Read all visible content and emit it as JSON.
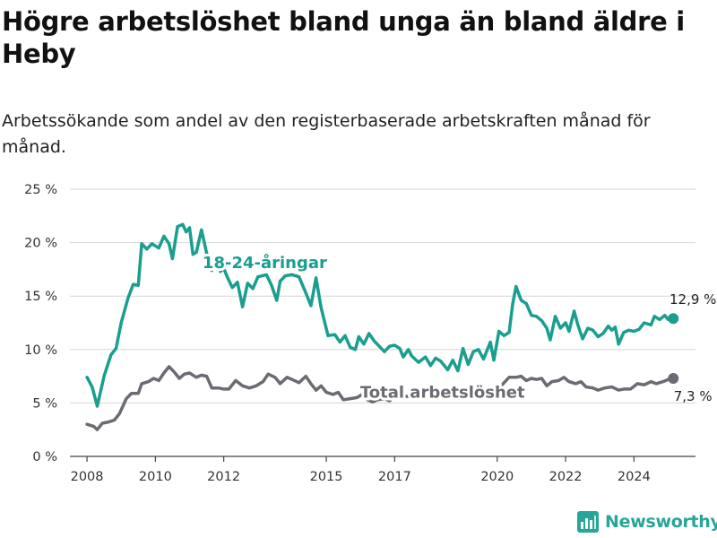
{
  "title": "Högre arbetslöshet bland unga än bland äldre i Heby",
  "subtitle": "Arbetssökande som andel av den registerbaserade arbetskraften månad för månad.",
  "brand": {
    "name": "Newsworthy",
    "icon": "newsworthy-logo-icon",
    "color": "#26a69a"
  },
  "chart_data": {
    "type": "line",
    "title": "Högre arbetslöshet bland unga än bland äldre i Heby",
    "subtitle": "Arbetssökande som andel av den registerbaserade arbetskraften månad för månad.",
    "xlabel": "",
    "ylabel": "",
    "x_range": [
      2007.5,
      2025.8
    ],
    "ylim": [
      0,
      25
    ],
    "y_ticks": [
      0,
      5,
      10,
      15,
      20,
      25
    ],
    "y_tick_labels": [
      "0 %",
      "5 %",
      "10 %",
      "15 %",
      "20 %",
      "25 %"
    ],
    "x_ticks": [
      2008,
      2010,
      2012,
      2015,
      2017,
      2020,
      2022,
      2024
    ],
    "x_tick_labels": [
      "2008",
      "2010",
      "2012",
      "2015",
      "2017",
      "2020",
      "2022",
      "2024"
    ],
    "grid": "horizontal",
    "series": [
      {
        "name": "18-24-åringar",
        "color": "#1a9e8f",
        "end_label": "12,9 %",
        "points": [
          [
            2008.0,
            7.4
          ],
          [
            2008.15,
            6.5
          ],
          [
            2008.3,
            4.7
          ],
          [
            2008.5,
            7.5
          ],
          [
            2008.7,
            9.5
          ],
          [
            2008.85,
            10.1
          ],
          [
            2009.0,
            12.5
          ],
          [
            2009.2,
            14.8
          ],
          [
            2009.35,
            16.1
          ],
          [
            2009.5,
            16.0
          ],
          [
            2009.6,
            19.9
          ],
          [
            2009.75,
            19.4
          ],
          [
            2009.9,
            19.9
          ],
          [
            2010.1,
            19.5
          ],
          [
            2010.25,
            20.6
          ],
          [
            2010.4,
            19.9
          ],
          [
            2010.5,
            18.5
          ],
          [
            2010.65,
            21.5
          ],
          [
            2010.8,
            21.7
          ],
          [
            2010.9,
            21.0
          ],
          [
            2011.0,
            21.4
          ],
          [
            2011.1,
            18.9
          ],
          [
            2011.2,
            19.1
          ],
          [
            2011.35,
            21.2
          ],
          [
            2011.5,
            19.0
          ],
          [
            2011.65,
            17.4
          ],
          [
            2011.8,
            18.2
          ],
          [
            2011.9,
            17.3
          ],
          [
            2012.0,
            17.6
          ],
          [
            2012.1,
            16.8
          ],
          [
            2012.25,
            15.8
          ],
          [
            2012.4,
            16.3
          ],
          [
            2012.55,
            14.0
          ],
          [
            2012.7,
            16.2
          ],
          [
            2012.85,
            15.7
          ],
          [
            2013.0,
            16.8
          ],
          [
            2013.25,
            17.0
          ],
          [
            2013.4,
            16.0
          ],
          [
            2013.55,
            14.6
          ],
          [
            2013.65,
            16.4
          ],
          [
            2013.8,
            16.9
          ],
          [
            2014.0,
            17.0
          ],
          [
            2014.2,
            16.8
          ],
          [
            2014.4,
            15.3
          ],
          [
            2014.55,
            14.1
          ],
          [
            2014.7,
            16.7
          ],
          [
            2014.85,
            13.9
          ],
          [
            2015.05,
            11.3
          ],
          [
            2015.25,
            11.4
          ],
          [
            2015.4,
            10.7
          ],
          [
            2015.55,
            11.3
          ],
          [
            2015.7,
            10.2
          ],
          [
            2015.85,
            10.0
          ],
          [
            2015.95,
            11.2
          ],
          [
            2016.1,
            10.5
          ],
          [
            2016.25,
            11.5
          ],
          [
            2016.4,
            10.8
          ],
          [
            2016.55,
            10.3
          ],
          [
            2016.7,
            9.8
          ],
          [
            2016.85,
            10.3
          ],
          [
            2017.0,
            10.4
          ],
          [
            2017.15,
            10.1
          ],
          [
            2017.25,
            9.3
          ],
          [
            2017.4,
            10.0
          ],
          [
            2017.5,
            9.4
          ],
          [
            2017.7,
            8.8
          ],
          [
            2017.9,
            9.3
          ],
          [
            2018.05,
            8.5
          ],
          [
            2018.2,
            9.2
          ],
          [
            2018.35,
            8.9
          ],
          [
            2018.55,
            8.1
          ],
          [
            2018.7,
            9.0
          ],
          [
            2018.85,
            8.0
          ],
          [
            2019.0,
            10.1
          ],
          [
            2019.15,
            8.6
          ],
          [
            2019.3,
            9.8
          ],
          [
            2019.45,
            10.0
          ],
          [
            2019.6,
            9.1
          ],
          [
            2019.8,
            10.7
          ],
          [
            2019.9,
            9.0
          ],
          [
            2020.05,
            11.7
          ],
          [
            2020.2,
            11.3
          ],
          [
            2020.35,
            11.6
          ],
          [
            2020.45,
            14.2
          ],
          [
            2020.55,
            15.9
          ],
          [
            2020.7,
            14.6
          ],
          [
            2020.85,
            14.3
          ],
          [
            2021.0,
            13.2
          ],
          [
            2021.15,
            13.1
          ],
          [
            2021.3,
            12.7
          ],
          [
            2021.45,
            12.0
          ],
          [
            2021.55,
            10.9
          ],
          [
            2021.7,
            13.1
          ],
          [
            2021.85,
            12.0
          ],
          [
            2022.0,
            12.5
          ],
          [
            2022.1,
            11.7
          ],
          [
            2022.25,
            13.6
          ],
          [
            2022.35,
            12.4
          ],
          [
            2022.5,
            11.0
          ],
          [
            2022.65,
            12.0
          ],
          [
            2022.8,
            11.8
          ],
          [
            2022.95,
            11.2
          ],
          [
            2023.1,
            11.5
          ],
          [
            2023.25,
            12.2
          ],
          [
            2023.35,
            11.8
          ],
          [
            2023.45,
            12.1
          ],
          [
            2023.55,
            10.5
          ],
          [
            2023.7,
            11.6
          ],
          [
            2023.85,
            11.8
          ],
          [
            2024.0,
            11.7
          ],
          [
            2024.15,
            11.9
          ],
          [
            2024.3,
            12.5
          ],
          [
            2024.5,
            12.3
          ],
          [
            2024.6,
            13.1
          ],
          [
            2024.75,
            12.8
          ],
          [
            2024.9,
            13.2
          ],
          [
            2025.0,
            12.8
          ],
          [
            2025.15,
            12.9
          ]
        ]
      },
      {
        "name": "Total arbetslöshet",
        "color": "#6b6b73",
        "end_label": "7,3 %",
        "points": [
          [
            2008.0,
            3.0
          ],
          [
            2008.2,
            2.8
          ],
          [
            2008.3,
            2.5
          ],
          [
            2008.45,
            3.1
          ],
          [
            2008.6,
            3.2
          ],
          [
            2008.8,
            3.4
          ],
          [
            2008.95,
            4.0
          ],
          [
            2009.15,
            5.4
          ],
          [
            2009.3,
            5.9
          ],
          [
            2009.5,
            5.9
          ],
          [
            2009.6,
            6.8
          ],
          [
            2009.8,
            7.0
          ],
          [
            2009.95,
            7.3
          ],
          [
            2010.1,
            7.1
          ],
          [
            2010.25,
            7.8
          ],
          [
            2010.4,
            8.4
          ],
          [
            2010.55,
            7.9
          ],
          [
            2010.7,
            7.3
          ],
          [
            2010.85,
            7.7
          ],
          [
            2011.0,
            7.8
          ],
          [
            2011.2,
            7.4
          ],
          [
            2011.35,
            7.6
          ],
          [
            2011.5,
            7.5
          ],
          [
            2011.65,
            6.4
          ],
          [
            2011.85,
            6.4
          ],
          [
            2012.0,
            6.3
          ],
          [
            2012.15,
            6.3
          ],
          [
            2012.35,
            7.1
          ],
          [
            2012.55,
            6.6
          ],
          [
            2012.75,
            6.4
          ],
          [
            2012.95,
            6.6
          ],
          [
            2013.15,
            7.0
          ],
          [
            2013.3,
            7.7
          ],
          [
            2013.5,
            7.4
          ],
          [
            2013.65,
            6.8
          ],
          [
            2013.85,
            7.4
          ],
          [
            2014.0,
            7.2
          ],
          [
            2014.2,
            6.9
          ],
          [
            2014.4,
            7.5
          ],
          [
            2014.55,
            6.8
          ],
          [
            2014.7,
            6.2
          ],
          [
            2014.85,
            6.6
          ],
          [
            2015.0,
            6.0
          ],
          [
            2015.2,
            5.8
          ],
          [
            2015.35,
            6.0
          ],
          [
            2015.5,
            5.3
          ],
          [
            2015.7,
            5.4
          ],
          [
            2015.9,
            5.5
          ],
          [
            2016.05,
            5.8
          ],
          [
            2016.2,
            5.3
          ],
          [
            2016.35,
            5.1
          ],
          [
            2016.5,
            5.3
          ],
          [
            2016.7,
            5.4
          ],
          [
            2016.85,
            5.2
          ],
          [
            2017.0,
            5.6
          ],
          [
            2019.85,
            5.7
          ],
          [
            2020.0,
            6.2
          ],
          [
            2020.2,
            6.9
          ],
          [
            2020.35,
            7.4
          ],
          [
            2020.55,
            7.4
          ],
          [
            2020.7,
            7.5
          ],
          [
            2020.85,
            7.1
          ],
          [
            2021.0,
            7.3
          ],
          [
            2021.15,
            7.2
          ],
          [
            2021.3,
            7.3
          ],
          [
            2021.45,
            6.6
          ],
          [
            2021.6,
            7.0
          ],
          [
            2021.8,
            7.1
          ],
          [
            2021.95,
            7.4
          ],
          [
            2022.1,
            7.0
          ],
          [
            2022.3,
            6.8
          ],
          [
            2022.45,
            7.0
          ],
          [
            2022.6,
            6.5
          ],
          [
            2022.8,
            6.4
          ],
          [
            2022.95,
            6.2
          ],
          [
            2023.15,
            6.4
          ],
          [
            2023.35,
            6.5
          ],
          [
            2023.55,
            6.2
          ],
          [
            2023.7,
            6.3
          ],
          [
            2023.9,
            6.3
          ],
          [
            2024.1,
            6.8
          ],
          [
            2024.3,
            6.7
          ],
          [
            2024.5,
            7.0
          ],
          [
            2024.65,
            6.8
          ],
          [
            2024.85,
            7.0
          ],
          [
            2025.0,
            7.2
          ],
          [
            2025.15,
            7.3
          ]
        ]
      }
    ],
    "annotations": [
      {
        "text": "18-24-åringar",
        "series": 0,
        "color": "#1a9e8f",
        "x": 2013.2,
        "y": 17.6
      },
      {
        "text": "Total arbetslöshet",
        "series": 1,
        "color": "#6b6b73",
        "x": 2018.4,
        "y": 5.5
      }
    ]
  }
}
